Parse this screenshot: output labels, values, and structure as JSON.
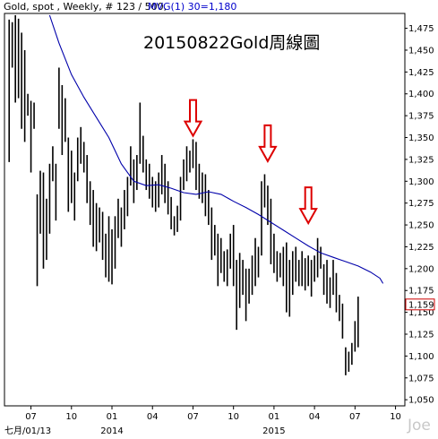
{
  "header": {
    "instrument": "Gold, spot , Weekly, # 123 / 500,",
    "indicator": "MVG(1) 30=1,180"
  },
  "annotation_title": "20150822Gold周線圖",
  "watermark": "Joe",
  "last_price_label": "1,159",
  "colors": {
    "bars": "#000000",
    "ma_line": "#0000aa",
    "arrow": "#dd0000",
    "last_label_border": "#cc0000"
  },
  "chart_data": {
    "type": "ohlc",
    "y_ticks": [
      1050,
      1075,
      1100,
      1125,
      1150,
      1175,
      1200,
      1225,
      1250,
      1275,
      1300,
      1325,
      1350,
      1375,
      1400,
      1425,
      1450,
      1475
    ],
    "y_tick_labels": [
      "1,050",
      "1,075",
      "1,100",
      "1,125",
      "1,150",
      "1,175",
      "1,200",
      "1,225",
      "1,250",
      "1,275",
      "1,300",
      "1,325",
      "1,350",
      "1,375",
      "1,400",
      "1,425",
      "1,450",
      "1,475"
    ],
    "ylim": [
      1043,
      1492
    ],
    "x_ticks": [
      {
        "label": "07",
        "week": 7
      },
      {
        "label": "10",
        "week": 20
      },
      {
        "label": "01",
        "week": 33
      },
      {
        "label": "04",
        "week": 46
      },
      {
        "label": "07",
        "week": 59
      },
      {
        "label": "10",
        "week": 72
      },
      {
        "label": "01",
        "week": 85
      },
      {
        "label": "04",
        "week": 98
      },
      {
        "label": "07",
        "week": 111
      },
      {
        "label": "10",
        "week": 124
      }
    ],
    "x_sublabels": [
      {
        "label": "七月/01/13",
        "week": 6
      },
      {
        "label": "2014",
        "week": 33
      },
      {
        "label": "2015",
        "week": 85
      }
    ],
    "xlim": [
      -1.5,
      127
    ],
    "bars": [
      [
        1485,
        1322
      ],
      [
        1482,
        1430
      ],
      [
        1490,
        1390
      ],
      [
        1486,
        1395
      ],
      [
        1470,
        1360
      ],
      [
        1450,
        1345
      ],
      [
        1400,
        1375
      ],
      [
        1392,
        1310
      ],
      [
        1390,
        1360
      ],
      [
        1285,
        1180
      ],
      [
        1312,
        1240
      ],
      [
        1310,
        1200
      ],
      [
        1280,
        1210
      ],
      [
        1320,
        1240
      ],
      [
        1340,
        1300
      ],
      [
        1320,
        1255
      ],
      [
        1430,
        1360
      ],
      [
        1410,
        1330
      ],
      [
        1395,
        1345
      ],
      [
        1350,
        1265
      ],
      [
        1335,
        1275
      ],
      [
        1310,
        1255
      ],
      [
        1350,
        1300
      ],
      [
        1362,
        1320
      ],
      [
        1345,
        1310
      ],
      [
        1330,
        1275
      ],
      [
        1300,
        1250
      ],
      [
        1290,
        1225
      ],
      [
        1275,
        1220
      ],
      [
        1270,
        1230
      ],
      [
        1265,
        1210
      ],
      [
        1240,
        1190
      ],
      [
        1260,
        1185
      ],
      [
        1245,
        1182
      ],
      [
        1260,
        1200
      ],
      [
        1280,
        1235
      ],
      [
        1270,
        1225
      ],
      [
        1290,
        1245
      ],
      [
        1305,
        1260
      ],
      [
        1340,
        1295
      ],
      [
        1325,
        1275
      ],
      [
        1330,
        1290
      ],
      [
        1390,
        1320
      ],
      [
        1352,
        1310
      ],
      [
        1325,
        1290
      ],
      [
        1320,
        1280
      ],
      [
        1305,
        1270
      ],
      [
        1300,
        1265
      ],
      [
        1310,
        1270
      ],
      [
        1330,
        1285
      ],
      [
        1320,
        1275
      ],
      [
        1300,
        1262
      ],
      [
        1282,
        1245
      ],
      [
        1260,
        1238
      ],
      [
        1272,
        1242
      ],
      [
        1305,
        1255
      ],
      [
        1325,
        1290
      ],
      [
        1340,
        1300
      ],
      [
        1335,
        1310
      ],
      [
        1348,
        1315
      ],
      [
        1345,
        1290
      ],
      [
        1320,
        1280
      ],
      [
        1310,
        1275
      ],
      [
        1308,
        1260
      ],
      [
        1290,
        1250
      ],
      [
        1270,
        1210
      ],
      [
        1250,
        1215
      ],
      [
        1240,
        1180
      ],
      [
        1235,
        1195
      ],
      [
        1220,
        1185
      ],
      [
        1222,
        1180
      ],
      [
        1240,
        1200
      ],
      [
        1250,
        1180
      ],
      [
        1210,
        1130
      ],
      [
        1218,
        1155
      ],
      [
        1210,
        1170
      ],
      [
        1200,
        1140
      ],
      [
        1200,
        1160
      ],
      [
        1215,
        1170
      ],
      [
        1235,
        1180
      ],
      [
        1225,
        1190
      ],
      [
        1300,
        1215
      ],
      [
        1308,
        1270
      ],
      [
        1295,
        1250
      ],
      [
        1280,
        1205
      ],
      [
        1240,
        1195
      ],
      [
        1220,
        1185
      ],
      [
        1218,
        1190
      ],
      [
        1225,
        1180
      ],
      [
        1230,
        1150
      ],
      [
        1210,
        1145
      ],
      [
        1220,
        1170
      ],
      [
        1225,
        1185
      ],
      [
        1210,
        1180
      ],
      [
        1220,
        1180
      ],
      [
        1212,
        1175
      ],
      [
        1215,
        1180
      ],
      [
        1210,
        1168
      ],
      [
        1215,
        1185
      ],
      [
        1235,
        1190
      ],
      [
        1225,
        1200
      ],
      [
        1205,
        1170
      ],
      [
        1210,
        1160
      ],
      [
        1190,
        1155
      ],
      [
        1210,
        1170
      ],
      [
        1195,
        1150
      ],
      [
        1170,
        1140
      ],
      [
        1160,
        1120
      ],
      [
        1110,
        1078
      ],
      [
        1105,
        1082
      ],
      [
        1115,
        1090
      ],
      [
        1140,
        1105
      ],
      [
        1168,
        1110
      ]
    ],
    "ma_series": {
      "name": "MVG(1) 30",
      "points": [
        [
          13,
          1490
        ],
        [
          16,
          1458
        ],
        [
          20,
          1422
        ],
        [
          24,
          1396
        ],
        [
          28,
          1373
        ],
        [
          32,
          1350
        ],
        [
          36,
          1320
        ],
        [
          40,
          1300
        ],
        [
          44,
          1295
        ],
        [
          48,
          1296
        ],
        [
          52,
          1292
        ],
        [
          56,
          1287
        ],
        [
          60,
          1285
        ],
        [
          64,
          1288
        ],
        [
          68,
          1285
        ],
        [
          72,
          1277
        ],
        [
          76,
          1270
        ],
        [
          80,
          1262
        ],
        [
          84,
          1253
        ],
        [
          88,
          1244
        ],
        [
          92,
          1235
        ],
        [
          96,
          1226
        ],
        [
          100,
          1218
        ],
        [
          104,
          1213
        ],
        [
          108,
          1208
        ],
        [
          112,
          1203
        ],
        [
          116,
          1196
        ],
        [
          119,
          1189
        ],
        [
          120,
          1183
        ]
      ]
    },
    "annotations": [
      {
        "type": "down-arrow",
        "week": 59,
        "price": 1352
      },
      {
        "type": "down-arrow",
        "week": 83,
        "price": 1323
      },
      {
        "type": "down-arrow",
        "week": 96,
        "price": 1252
      }
    ],
    "last_price": 1159
  }
}
